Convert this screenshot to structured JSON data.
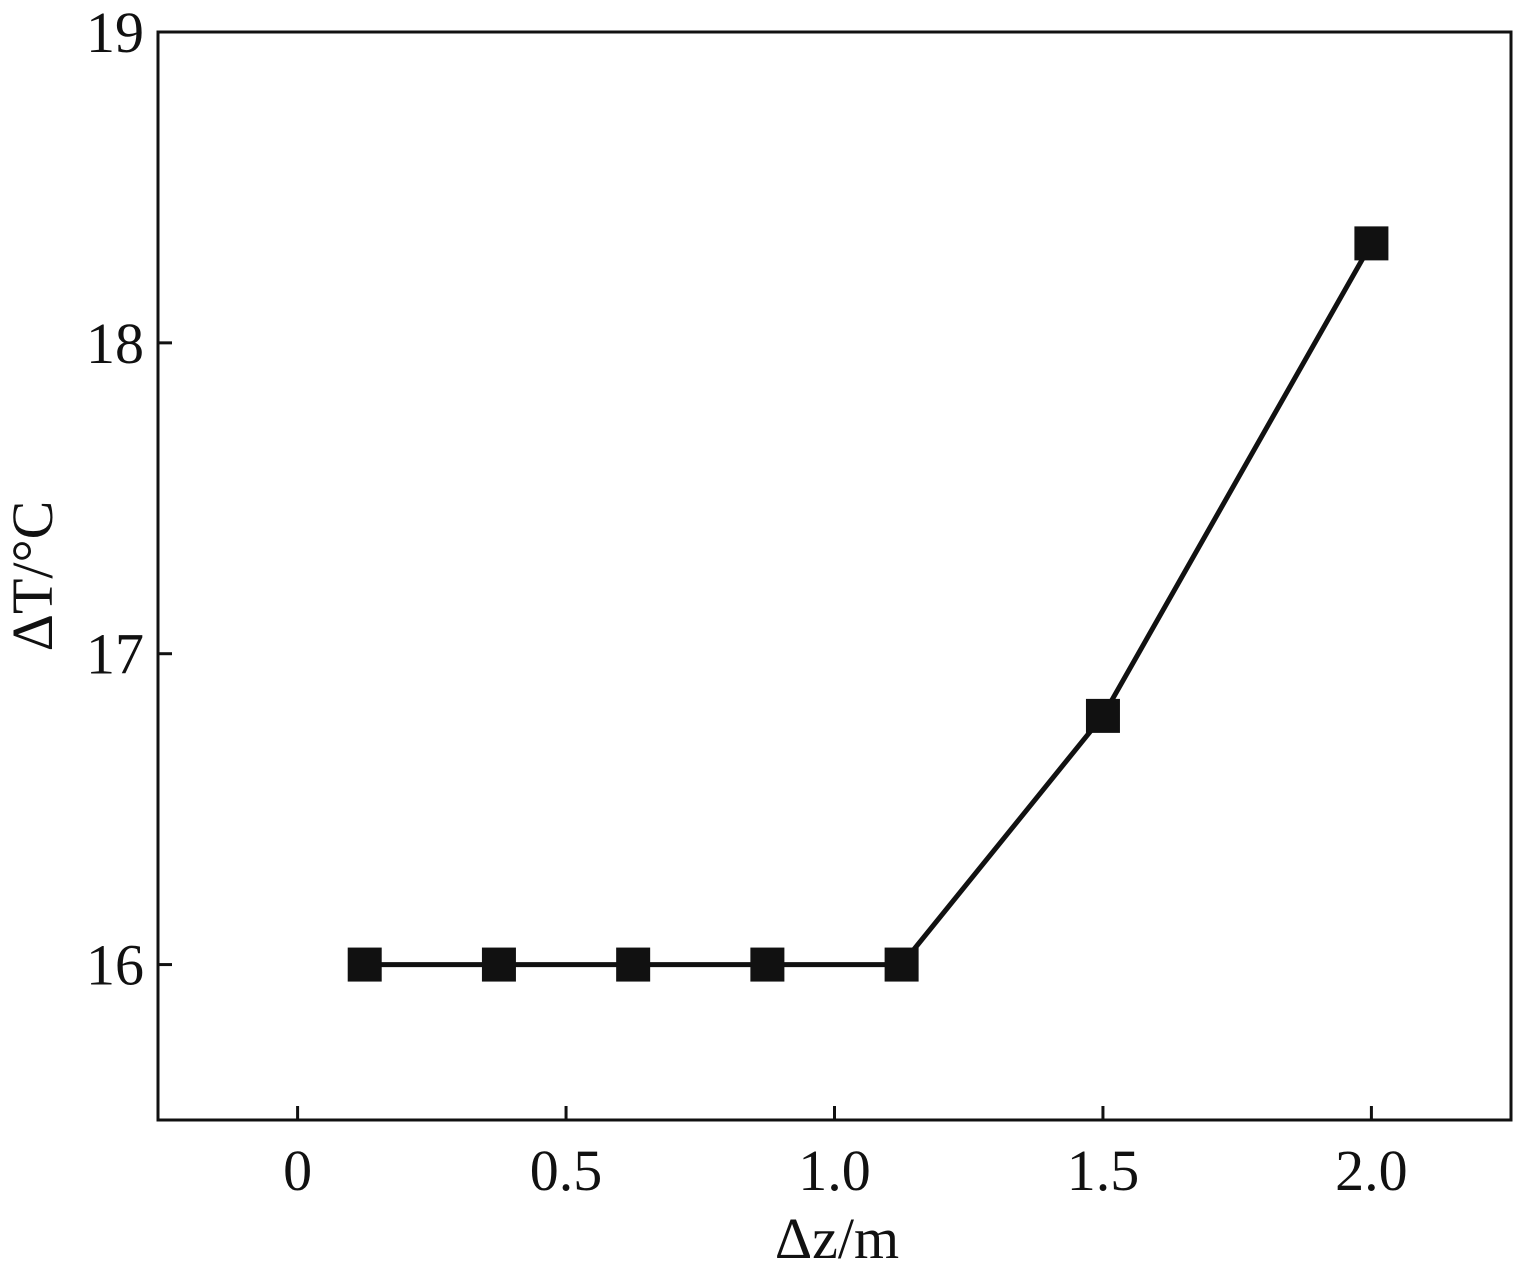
{
  "chart_data": {
    "type": "line",
    "x_label": "Δz/m",
    "y_label": "ΔT/°C",
    "x": [
      0.125,
      0.375,
      0.625,
      0.875,
      1.125,
      1.5,
      2.0
    ],
    "series": [
      {
        "color": "#111111",
        "values": [
          16,
          16,
          16,
          16,
          16,
          16.8,
          18.32
        ]
      }
    ],
    "xlim": [
      -0.26,
      2.26
    ],
    "ylim": [
      15.5,
      19
    ],
    "xticks": [
      0,
      0.5,
      {
        "value": 1,
        "label": "1.0"
      },
      1.5,
      {
        "value": 2,
        "label": "2.0"
      }
    ],
    "yticks": [
      16,
      17,
      18,
      19
    ],
    "grid": false,
    "marker": "square"
  }
}
